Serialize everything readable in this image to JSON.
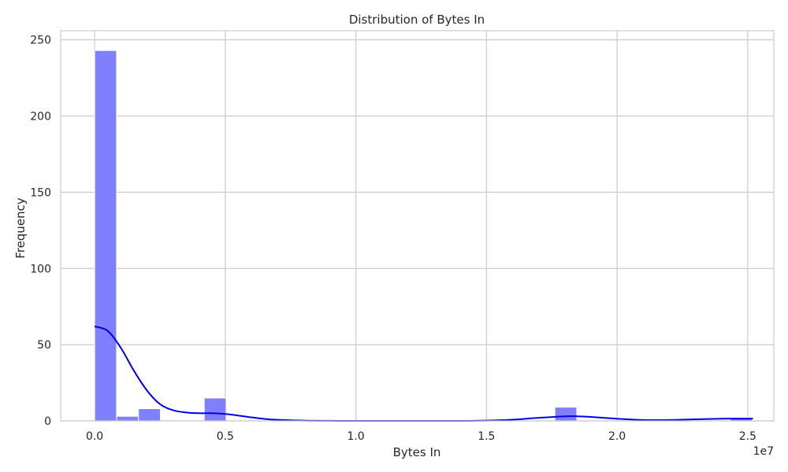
{
  "chart_data": {
    "type": "bar",
    "title": "Distribution of Bytes In",
    "xlabel": "Bytes In",
    "ylabel": "Frequency",
    "x_offset_label": "1e7",
    "xlim": [
      -0.13,
      2.6
    ],
    "ylim": [
      0,
      256
    ],
    "x_ticks": [
      0.0,
      0.5,
      1.0,
      1.5,
      2.0,
      2.5
    ],
    "x_tick_labels": [
      "0.0",
      "0.5",
      "1.0",
      "1.5",
      "2.0",
      "2.5"
    ],
    "y_ticks": [
      0,
      50,
      100,
      150,
      200,
      250
    ],
    "y_tick_labels": [
      "0",
      "50",
      "100",
      "150",
      "200",
      "250"
    ],
    "bin_width": 0.0839,
    "bins": [
      {
        "x0": 0.0,
        "count": 243
      },
      {
        "x0": 0.0839,
        "count": 3
      },
      {
        "x0": 0.1678,
        "count": 8
      },
      {
        "x0": 0.4195,
        "count": 15
      },
      {
        "x0": 1.7618,
        "count": 9
      },
      {
        "x0": 2.4329,
        "count": 2
      }
    ],
    "kde": {
      "x": [
        0.0,
        0.05,
        0.1,
        0.15,
        0.2,
        0.25,
        0.3,
        0.35,
        0.4,
        0.45,
        0.5,
        0.55,
        0.6,
        0.65,
        0.7,
        0.8,
        0.9,
        1.0,
        1.2,
        1.4,
        1.5,
        1.6,
        1.7,
        1.8,
        1.85,
        1.9,
        2.0,
        2.1,
        2.2,
        2.3,
        2.4,
        2.5,
        2.52
      ],
      "y": [
        62,
        59,
        48,
        33,
        20,
        11,
        7,
        5.5,
        5,
        5,
        4.5,
        3.5,
        2.3,
        1.3,
        0.7,
        0.2,
        0.05,
        0.0,
        0.0,
        0.0,
        0.2,
        0.8,
        2.0,
        3.0,
        3.0,
        2.6,
        1.4,
        0.6,
        0.6,
        1.0,
        1.4,
        1.5,
        1.5
      ]
    },
    "grid": true,
    "colors": {
      "bar_fill": "#8080ff",
      "bar_edge": "#ffffff",
      "kde_line": "#0000e6",
      "grid": "#cccccc",
      "spine": "#cccccc",
      "text": "#262626"
    }
  }
}
